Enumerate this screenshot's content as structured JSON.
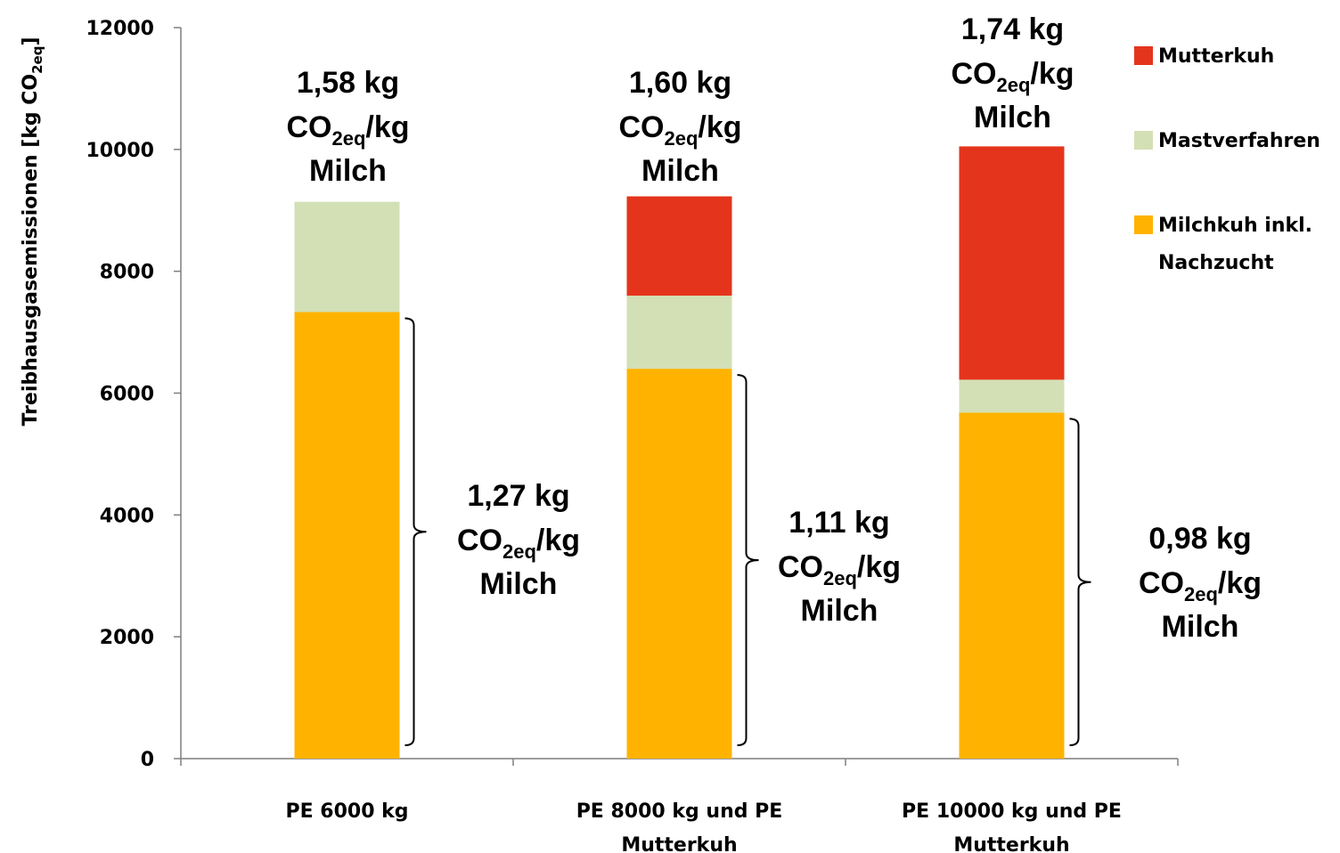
{
  "chart_data": {
    "type": "bar",
    "stacked": true,
    "ylabel": {
      "main": "Treibhausgasemissionen  [kg CO",
      "sub": "2eq",
      "end": "]"
    },
    "ylim": [
      0,
      12000
    ],
    "yticks": [
      "0",
      "2000",
      "4000",
      "6000",
      "8000",
      "10000",
      "12000"
    ],
    "categories": [
      [
        "PE 6000 kg"
      ],
      [
        "PE 8000 kg und PE",
        "Mutterkuh"
      ],
      [
        "PE 10000 kg und PE",
        "Mutterkuh"
      ]
    ],
    "series": [
      {
        "name": "Milchkuh inkl. Nachzucht",
        "legend_lines": [
          "Milchkuh inkl.",
          "Nachzucht"
        ],
        "color": "#FFB300",
        "values": [
          7330,
          6400,
          5680
        ]
      },
      {
        "name": "Mastverfahren",
        "legend_lines": [
          "Mastverfahren"
        ],
        "color": "#D3E0B5",
        "values": [
          1810,
          1200,
          540
        ]
      },
      {
        "name": "Mutterkuh",
        "legend_lines": [
          "Mutterkuh"
        ],
        "color": "#E4351C",
        "values": [
          0,
          1630,
          3830
        ]
      }
    ],
    "legend_order": [
      "Mutterkuh",
      "Mastverfahren",
      "Milchkuh inkl. Nachzucht"
    ],
    "legend_position": "right",
    "top_labels": [
      {
        "value": "1,58 kg",
        "unit_pre": "CO",
        "unit_sub": "2eq",
        "unit_post": "/kg",
        "product": "Milch"
      },
      {
        "value": "1,60 kg",
        "unit_pre": "CO",
        "unit_sub": "2eq",
        "unit_post": "/kg",
        "product": "Milch"
      },
      {
        "value": "1,74 kg",
        "unit_pre": "CO",
        "unit_sub": "2eq",
        "unit_post": "/kg",
        "product": "Milch"
      }
    ],
    "brace_labels": [
      {
        "value": "1,27 kg",
        "unit_pre": "CO",
        "unit_sub": "2eq",
        "unit_post": "/kg",
        "product": "Milch"
      },
      {
        "value": "1,11 kg",
        "unit_pre": "CO",
        "unit_sub": "2eq",
        "unit_post": "/kg",
        "product": "Milch"
      },
      {
        "value": "0,98 kg",
        "unit_pre": "CO",
        "unit_sub": "2eq",
        "unit_post": "/kg",
        "product": "Milch"
      }
    ]
  }
}
